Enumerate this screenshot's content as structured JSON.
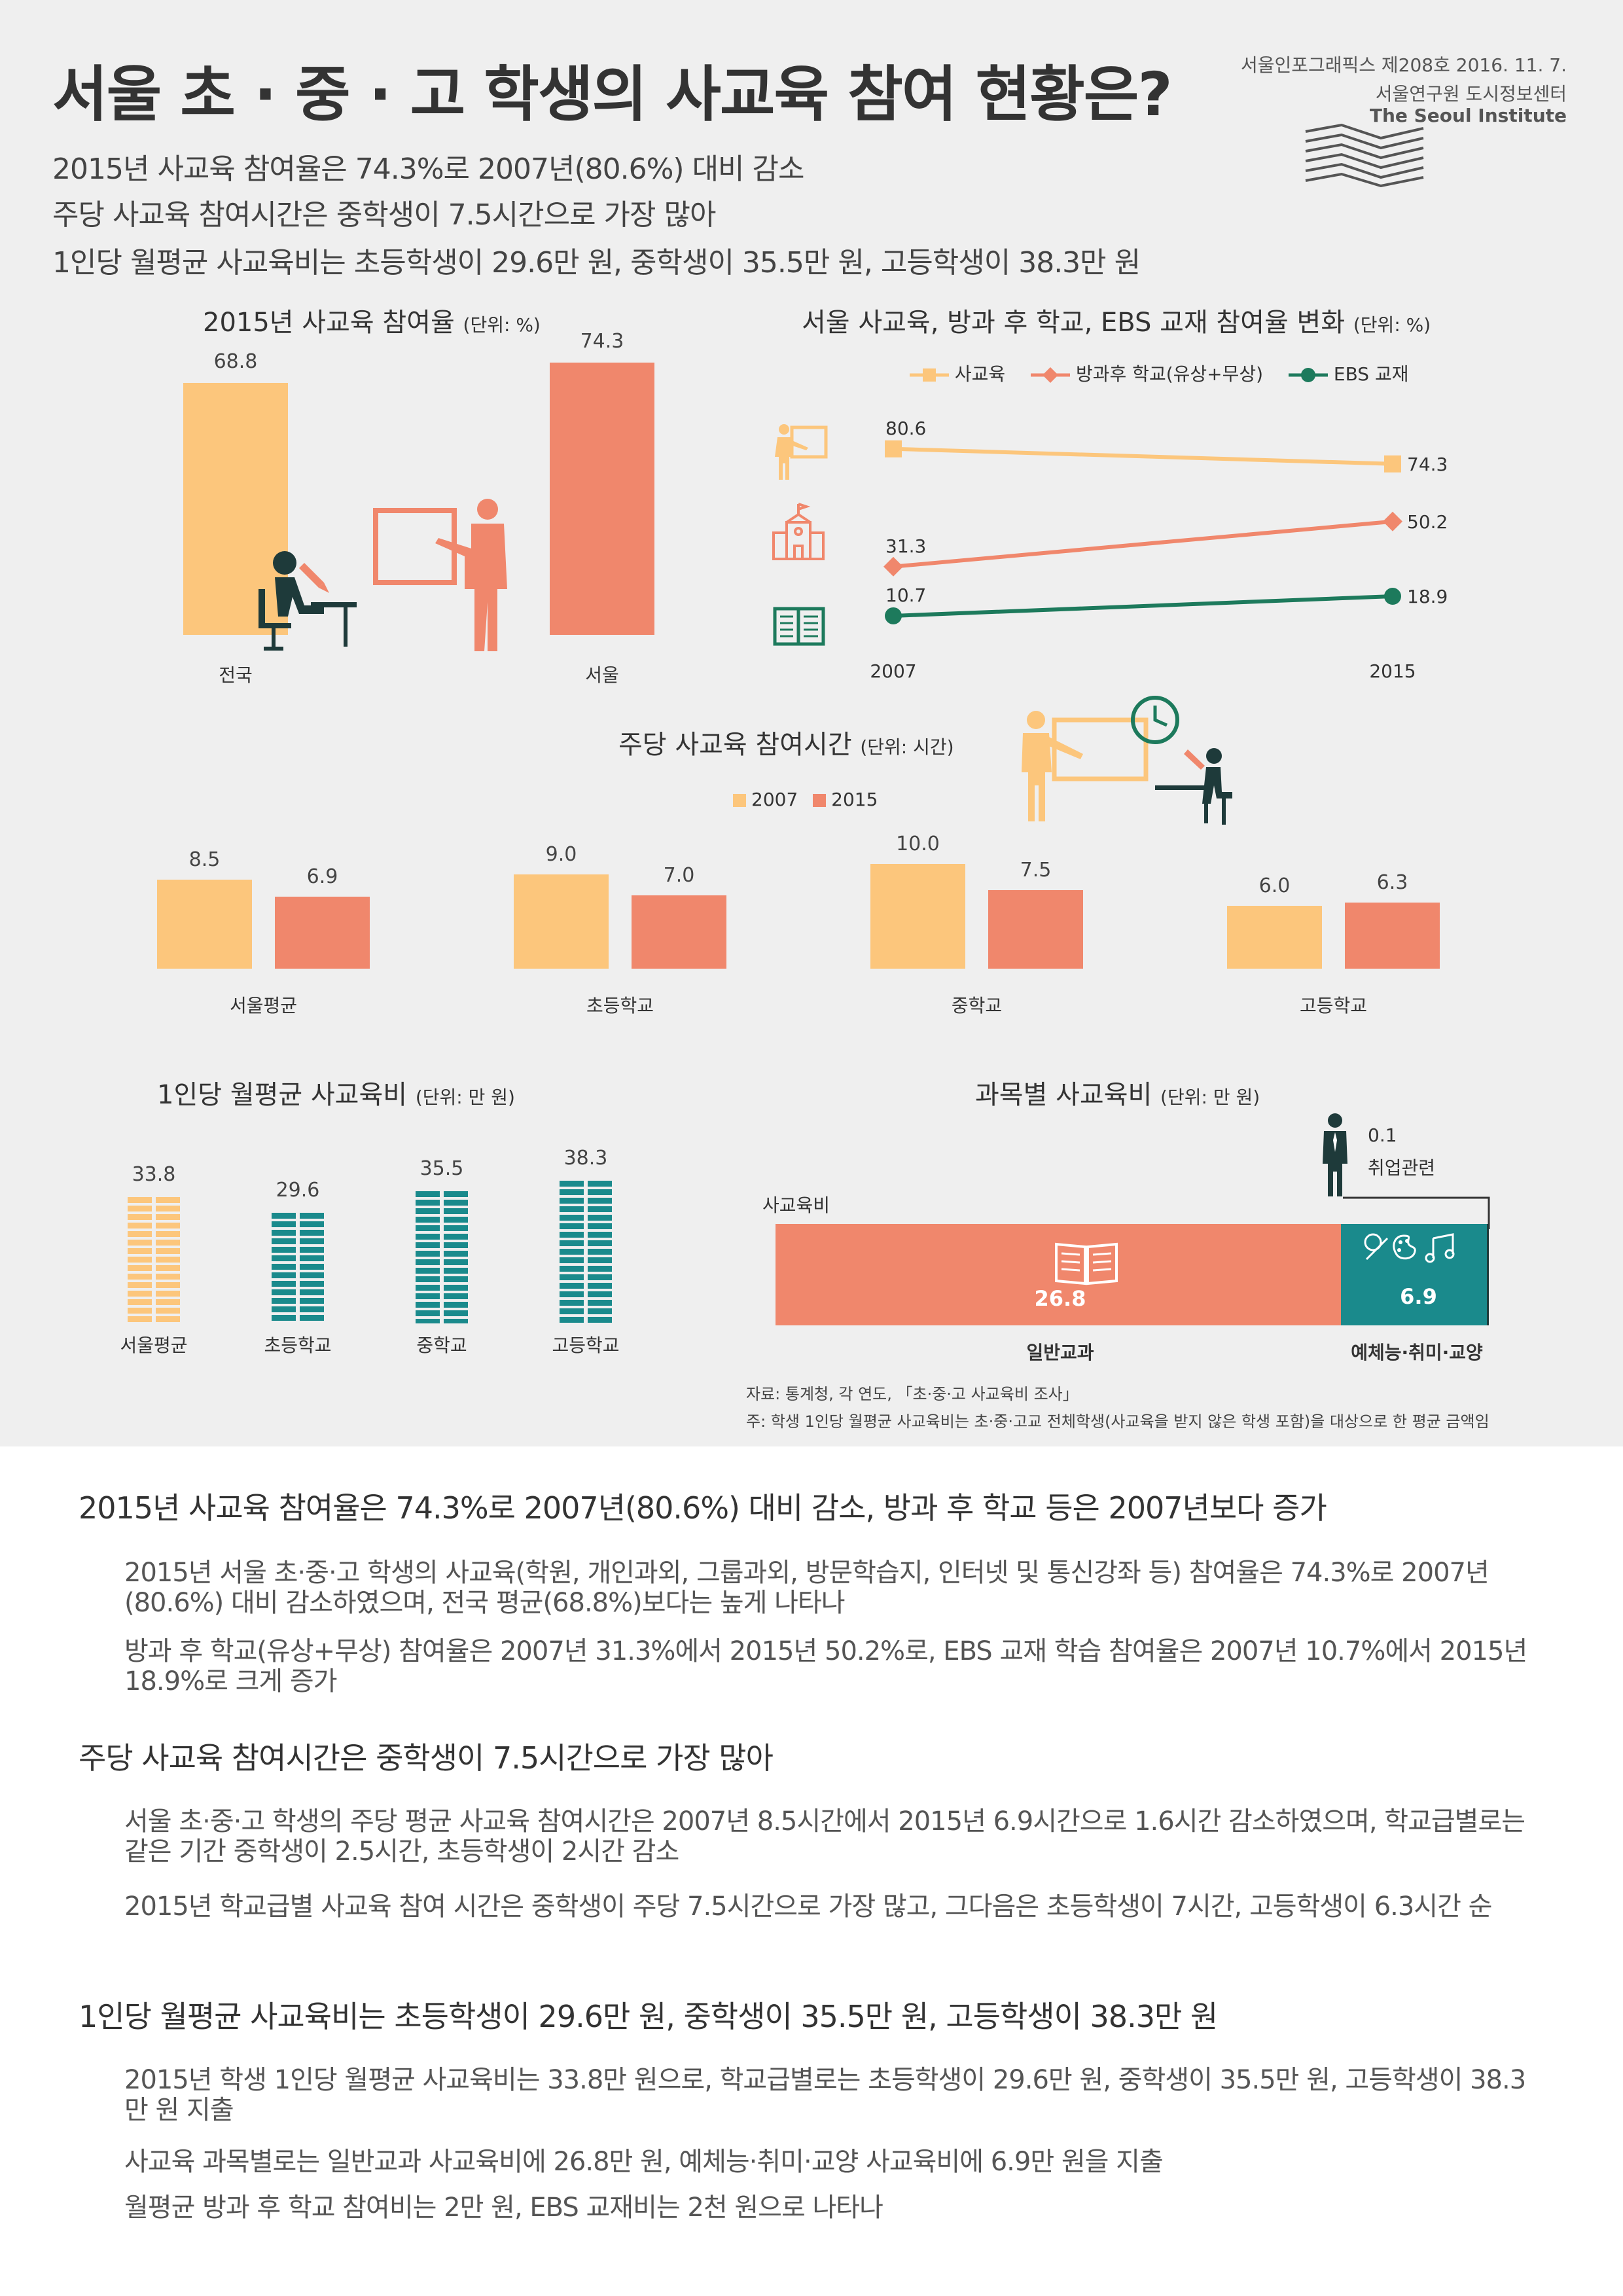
{
  "header": {
    "title": "서울 초 · 중 · 고 학생의 사교육 참여 현황은?",
    "pub_info": "서울인포그래픽스 제208호 2016. 11. 7.",
    "institute_ko": "서울연구원 도시정보센터",
    "institute_en": "The Seoul Institute",
    "subtitles": [
      "2015년 사교육 참여율은 74.3%로 2007년(80.6%) 대비 감소",
      "주당 사교육 참여시간은 중학생이 7.5시간으로 가장 많아",
      "1인당 월평균 사교육비는 초등학생이 29.6만 원, 중학생이 35.5만 원, 고등학생이 38.3만 원"
    ]
  },
  "colors": {
    "yellow": "#fcc67c",
    "salmon": "#f0876c",
    "teal": "#1a8a8c",
    "green": "#1d7a5c",
    "dark": "#1e3a3a"
  },
  "chart_data": [
    {
      "type": "bar",
      "title": "2015년 사교육 참여율",
      "unit": "(단위: %)",
      "categories": [
        "전국",
        "서울"
      ],
      "values": [
        68.8,
        74.3
      ],
      "value_labels": [
        "68.8",
        "74.3"
      ],
      "ylim": [
        0,
        80
      ]
    },
    {
      "type": "line",
      "title": "서울 사교육, 방과 후 학교, EBS 교재 참여율 변화",
      "unit": "(단위: %)",
      "x": [
        "2007",
        "2015"
      ],
      "series": [
        {
          "name": "사교육",
          "values": [
            80.6,
            74.3
          ],
          "labels": [
            "80.6",
            "74.3"
          ],
          "color": "#fcc67c"
        },
        {
          "name": "방과후 학교(유상+무상)",
          "values": [
            31.3,
            50.2
          ],
          "labels": [
            "31.3",
            "50.2"
          ],
          "color": "#f0876c"
        },
        {
          "name": "EBS 교재",
          "values": [
            10.7,
            18.9
          ],
          "labels": [
            "10.7",
            "18.9"
          ],
          "color": "#1d7a5c"
        }
      ]
    },
    {
      "type": "bar",
      "title": "주당 사교육 참여시간",
      "unit": "(단위: 시간)",
      "categories": [
        "서울평균",
        "초등학교",
        "중학교",
        "고등학교"
      ],
      "series": [
        {
          "name": "2007",
          "values": [
            8.5,
            9.0,
            10.0,
            6.0
          ],
          "labels": [
            "8.5",
            "9.0",
            "10.0",
            "6.0"
          ],
          "color": "#fcc67c"
        },
        {
          "name": "2015",
          "values": [
            6.9,
            7.0,
            7.5,
            6.3
          ],
          "labels": [
            "6.9",
            "7.0",
            "7.5",
            "6.3"
          ],
          "color": "#f0876c"
        }
      ],
      "ylim": [
        0,
        10
      ]
    },
    {
      "type": "bar",
      "title": "1인당 월평균 사교육비",
      "unit": "(단위: 만 원)",
      "categories": [
        "서울평균",
        "초등학교",
        "중학교",
        "고등학교"
      ],
      "values": [
        33.8,
        29.6,
        35.5,
        38.3
      ],
      "value_labels": [
        "33.8",
        "29.6",
        "35.5",
        "38.3"
      ],
      "colors": [
        "#fcc67c",
        "#1a8a8c",
        "#1a8a8c",
        "#1a8a8c"
      ]
    },
    {
      "type": "bar",
      "title": "과목별 사교육비",
      "unit": "(단위: 만 원)",
      "row_label": "사교육비",
      "segments": [
        {
          "name": "일반교과",
          "value": 26.8,
          "label": "26.8",
          "color": "#f0876c"
        },
        {
          "name": "예체능·취미·교양",
          "value": 6.9,
          "label": "6.9",
          "color": "#1a8a8c"
        },
        {
          "name": "취업관련",
          "value": 0.1,
          "label": "0.1",
          "color": "#1e3a3a"
        }
      ]
    }
  ],
  "notes": {
    "source": "자료: 통계청, 각 연도, 「초·중·고 사교육비 조사」",
    "footnote": "주: 학생 1인당 월평균 사교육비는 초·중·고교 전체학생(사교육을 받지 않은 학생 포함)을 대상으로 한 평균 금액임"
  },
  "sections": [
    {
      "heading": "2015년 사교육 참여율은 74.3%로 2007년(80.6%) 대비 감소, 방과 후 학교 등은 2007년보다 증가",
      "paragraphs": [
        "2015년 서울 초·중·고 학생의 사교육(학원, 개인과외, 그룹과외, 방문학습지, 인터넷 및 통신강좌 등) 참여율은 74.3%로 2007년(80.6%) 대비 감소하였으며, 전국 평균(68.8%)보다는 높게 나타나",
        "방과 후 학교(유상+무상) 참여율은 2007년 31.3%에서 2015년 50.2%로, EBS 교재 학습 참여율은 2007년 10.7%에서 2015년 18.9%로 크게 증가"
      ]
    },
    {
      "heading": "주당 사교육 참여시간은 중학생이 7.5시간으로 가장 많아",
      "paragraphs": [
        "서울 초·중·고 학생의 주당 평균 사교육 참여시간은 2007년 8.5시간에서 2015년 6.9시간으로 1.6시간 감소하였으며, 학교급별로는 같은 기간 중학생이 2.5시간, 초등학생이 2시간 감소",
        "2015년 학교급별 사교육 참여 시간은 중학생이 주당 7.5시간으로 가장 많고, 그다음은 초등학생이 7시간, 고등학생이 6.3시간 순"
      ]
    },
    {
      "heading": "1인당 월평균 사교육비는 초등학생이 29.6만 원, 중학생이 35.5만 원, 고등학생이 38.3만 원",
      "paragraphs": [
        "2015년 학생 1인당 월평균 사교육비는 33.8만 원으로, 학교급별로는 초등학생이 29.6만 원, 중학생이 35.5만 원, 고등학생이 38.3만 원 지출",
        "사교육 과목별로는 일반교과 사교육비에 26.8만 원, 예체능·취미·교양 사교육비에 6.9만 원을 지출",
        "월평균 방과 후 학교 참여비는 2만 원, EBS 교재비는 2천 원으로 나타나"
      ]
    }
  ]
}
